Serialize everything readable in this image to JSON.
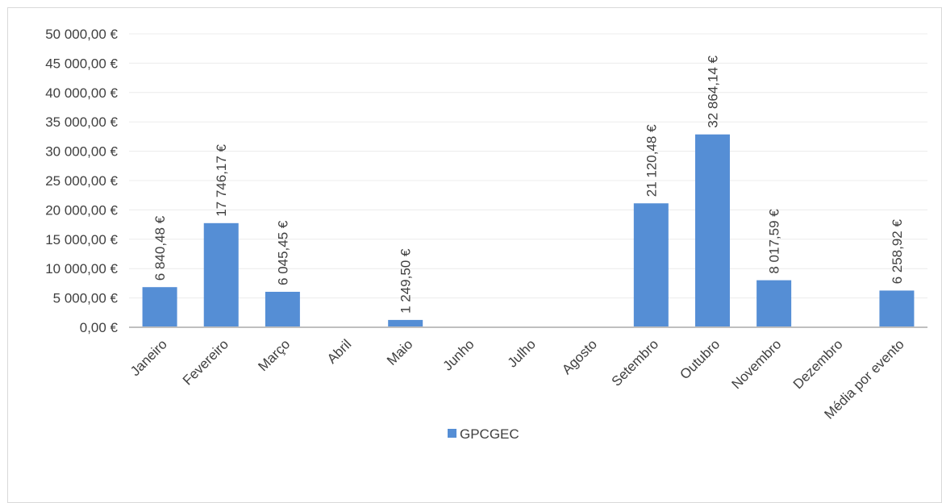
{
  "chart_data": {
    "type": "bar",
    "title": "",
    "xlabel": "",
    "ylabel": "",
    "categories": [
      "Janeiro",
      "Fevereiro",
      "Março",
      "Abril",
      "Maio",
      "Junho",
      "Julho",
      "Agosto",
      "Setembro",
      "Outubro",
      "Novembro",
      "Dezembro",
      "Média por evento"
    ],
    "series": [
      {
        "name": "GPCGEC",
        "color": "#558ed5",
        "values": [
          6840.48,
          17746.17,
          6045.45,
          0,
          1249.5,
          0,
          0,
          0,
          21120.48,
          32864.14,
          8017.59,
          0,
          6258.92
        ],
        "data_labels": [
          "6 840,48 €",
          "17 746,17 €",
          "6 045,45 €",
          "",
          "1 249,50 €",
          "",
          "",
          "",
          "21 120,48 €",
          "32 864,14 €",
          "8 017,59 €",
          "",
          "6 258,92 €"
        ]
      }
    ],
    "ylim": [
      0,
      50000
    ],
    "yticks": [
      0,
      5000,
      10000,
      15000,
      20000,
      25000,
      30000,
      35000,
      40000,
      45000,
      50000
    ],
    "ytick_labels": [
      "0,00 €",
      "5 000,00 €",
      "10 000,00 €",
      "15 000,00 €",
      "20 000,00 €",
      "25 000,00 €",
      "30 000,00 €",
      "35 000,00 €",
      "40 000,00 €",
      "45 000,00 €",
      "50 000,00 €"
    ],
    "grid": true,
    "legend": "bottom-center"
  }
}
